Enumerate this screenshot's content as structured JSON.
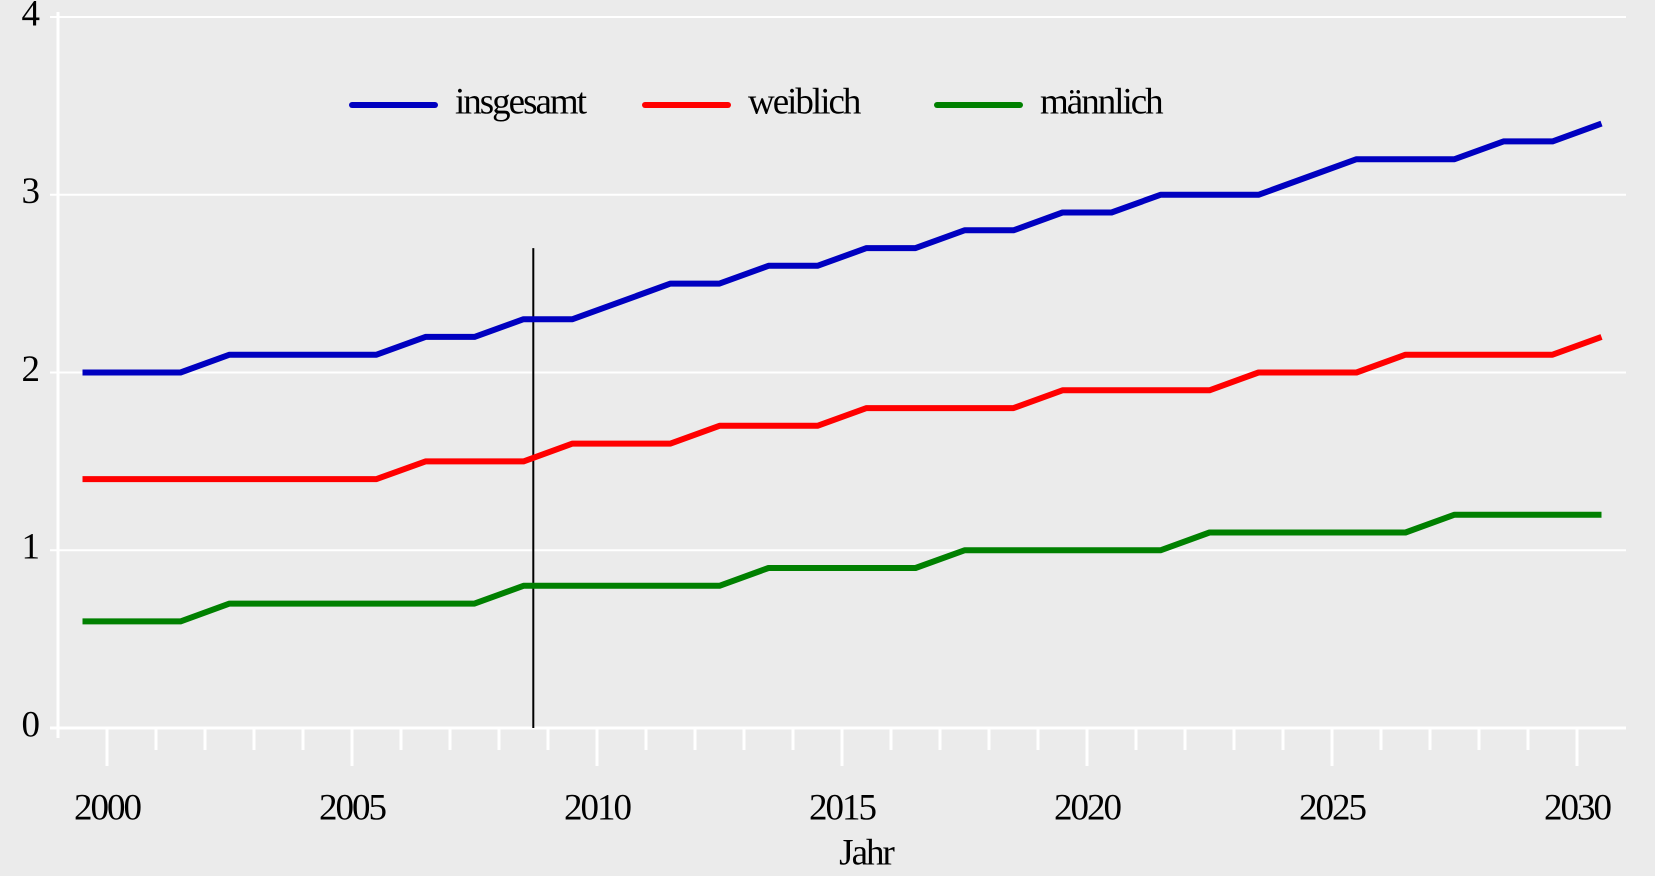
{
  "chart_data": {
    "type": "line",
    "x_label": "Jahr",
    "x": [
      1999.5,
      2000.5,
      2001.5,
      2002.5,
      2003.5,
      2004.5,
      2005.5,
      2006.5,
      2007.5,
      2008.5,
      2009.5,
      2010.5,
      2011.5,
      2012.5,
      2013.5,
      2014.5,
      2015.5,
      2016.5,
      2017.5,
      2018.5,
      2019.5,
      2020.5,
      2021.5,
      2022.5,
      2023.5,
      2024.5,
      2025.5,
      2026.5,
      2027.5,
      2028.5,
      2029.5,
      2030.5
    ],
    "series": [
      {
        "name": "insgesamt",
        "color": "#0000c0",
        "values": [
          2.0,
          2.0,
          2.0,
          2.1,
          2.1,
          2.1,
          2.1,
          2.2,
          2.2,
          2.3,
          2.3,
          2.4,
          2.5,
          2.5,
          2.6,
          2.6,
          2.7,
          2.7,
          2.8,
          2.8,
          2.9,
          2.9,
          3.0,
          3.0,
          3.0,
          3.1,
          3.2,
          3.2,
          3.2,
          3.3,
          3.3,
          3.4
        ]
      },
      {
        "name": "weiblich",
        "color": "#ff0000",
        "values": [
          1.4,
          1.4,
          1.4,
          1.4,
          1.4,
          1.4,
          1.4,
          1.5,
          1.5,
          1.5,
          1.6,
          1.6,
          1.6,
          1.7,
          1.7,
          1.7,
          1.8,
          1.8,
          1.8,
          1.8,
          1.9,
          1.9,
          1.9,
          1.9,
          2.0,
          2.0,
          2.0,
          2.1,
          2.1,
          2.1,
          2.1,
          2.2
        ]
      },
      {
        "name": "männlich",
        "color": "#008000",
        "values": [
          0.6,
          0.6,
          0.6,
          0.7,
          0.7,
          0.7,
          0.7,
          0.7,
          0.7,
          0.8,
          0.8,
          0.8,
          0.8,
          0.8,
          0.9,
          0.9,
          0.9,
          0.9,
          1.0,
          1.0,
          1.0,
          1.0,
          1.0,
          1.1,
          1.1,
          1.1,
          1.1,
          1.1,
          1.2,
          1.2,
          1.2,
          1.2
        ]
      }
    ],
    "xlim": [
      1999,
      2031
    ],
    "xticks": [
      2000,
      2005,
      2010,
      2015,
      2020,
      2025,
      2030
    ],
    "xminorticks": [
      2001,
      2002,
      2003,
      2004,
      2006,
      2007,
      2008,
      2009,
      2011,
      2012,
      2013,
      2014,
      2016,
      2017,
      2018,
      2019,
      2021,
      2022,
      2023,
      2024,
      2026,
      2027,
      2028,
      2029
    ],
    "ylim": [
      0,
      4
    ],
    "yticks": [
      0,
      1,
      2,
      3,
      4
    ],
    "grid": true,
    "legend": "top",
    "reference_line": {
      "x": 2008.7,
      "ylim": [
        0,
        2.7
      ],
      "color": "#000000"
    }
  }
}
